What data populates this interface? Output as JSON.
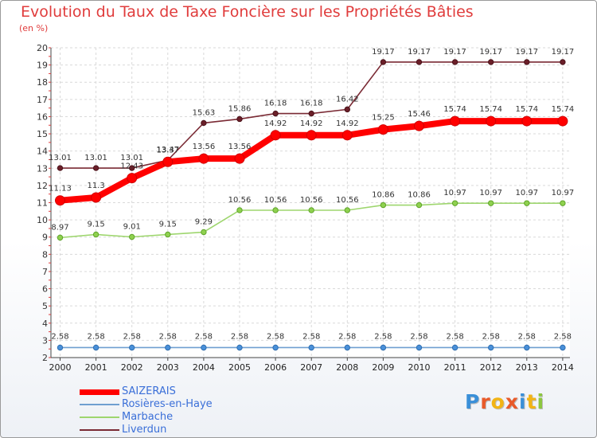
{
  "chart_data": {
    "type": "line",
    "title": "Evolution du Taux de Taxe Foncière sur les Propriétés Bâties",
    "ylabel": "(en %)",
    "xlabel": "",
    "ylim": [
      2,
      20
    ],
    "yticks": [
      2,
      3,
      4,
      5,
      6,
      7,
      8,
      9,
      10,
      11,
      12,
      13,
      14,
      15,
      16,
      17,
      18,
      19,
      20
    ],
    "categories": [
      "2000",
      "2001",
      "2002",
      "2003",
      "2004",
      "2005",
      "2006",
      "2007",
      "2008",
      "2009",
      "2010",
      "2011",
      "2012",
      "2013",
      "2014"
    ],
    "series": [
      {
        "name": "SAIZERAIS",
        "color": "#ff0000",
        "values": [
          11.13,
          11.3,
          12.43,
          13.37,
          13.56,
          13.56,
          14.92,
          14.92,
          14.92,
          15.25,
          15.46,
          15.74,
          15.74,
          15.74,
          15.74
        ],
        "labels": [
          "11.13",
          "11.3",
          "12.43",
          "13.37",
          "13.56",
          "13.56",
          "14.92",
          "14.92",
          "14.92",
          "15.25",
          "15.46",
          "15.74",
          "15.74",
          "15.74",
          "15.74"
        ]
      },
      {
        "name": "Rosières-en-Haye",
        "color": "#6f9fd0",
        "values": [
          2.58,
          2.58,
          2.58,
          2.58,
          2.58,
          2.58,
          2.58,
          2.58,
          2.58,
          2.58,
          2.58,
          2.58,
          2.58,
          2.58,
          2.58
        ],
        "labels": [
          "2.58",
          "2.58",
          "2.58",
          "2.58",
          "2.58",
          "2.58",
          "2.58",
          "2.58",
          "2.58",
          "2.58",
          "2.58",
          "2.58",
          "2.58",
          "2.58",
          "2.58"
        ]
      },
      {
        "name": "Marbache",
        "color": "#9ed66e",
        "values": [
          8.97,
          9.15,
          9.01,
          9.15,
          9.29,
          10.56,
          10.56,
          10.56,
          10.56,
          10.86,
          10.86,
          10.97,
          10.97,
          10.97,
          10.97
        ],
        "labels": [
          "8.97",
          "9.15",
          "9.01",
          "9.15",
          "9.29",
          "10.56",
          "10.56",
          "10.56",
          "10.56",
          "10.86",
          "10.86",
          "10.97",
          "10.97",
          "10.97",
          "10.97"
        ]
      },
      {
        "name": "Liverdun",
        "color": "#7a2a34",
        "values": [
          13.01,
          13.01,
          13.01,
          13.47,
          15.63,
          15.86,
          16.18,
          16.18,
          16.42,
          19.17,
          19.17,
          19.17,
          19.17,
          19.17,
          19.17
        ],
        "labels": [
          "13.01",
          "13.01",
          "13.01",
          "13.47",
          "15.63",
          "15.86",
          "16.18",
          "16.18",
          "16.42",
          "19.17",
          "19.17",
          "19.17",
          "19.17",
          "19.17",
          "19.17"
        ]
      }
    ],
    "legend_position": "bottom-left"
  },
  "logo": {
    "text": "Proxiti",
    "letters": [
      "P",
      "r",
      "o",
      "x",
      "i",
      "t",
      "i"
    ],
    "colors": [
      "#3a8fd8",
      "#e85a2a",
      "#f2b415",
      "#e85a2a",
      "#3a8fd8",
      "#f2b415",
      "#8cc63f"
    ]
  }
}
